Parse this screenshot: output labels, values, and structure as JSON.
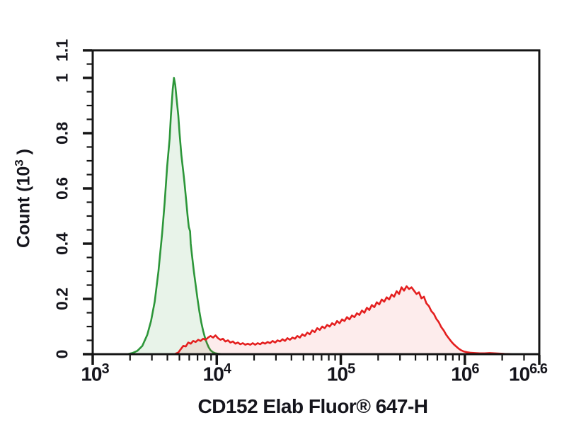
{
  "chart_data": {
    "type": "area",
    "subtype": "flow-cytometry-overlay-histogram",
    "title": "",
    "xlabel": "CD152 Elab Fluor® 647-H",
    "ylabel_prefix": "Count (10",
    "ylabel_sup": "3",
    "ylabel_suffix": " )",
    "grid": false,
    "legend": "none",
    "x_axis": {
      "scale": "log10",
      "min_log": 3,
      "max_log": 6.6,
      "major_ticks": [
        {
          "base": "10",
          "exp": "3",
          "log": 3,
          "dx": 3
        },
        {
          "base": "10",
          "exp": "4",
          "log": 4,
          "dx": 0
        },
        {
          "base": "10",
          "exp": "5",
          "log": 5,
          "dx": 0
        },
        {
          "base": "10",
          "exp": "6",
          "log": 6,
          "dx": 0
        },
        {
          "base": "10",
          "exp": "6.6",
          "log": 6.6,
          "dx": -16
        }
      ],
      "minor_ticks": "log positions 2-9 within each decade"
    },
    "y_axis": {
      "min": 0,
      "max": 1.1,
      "major_ticks": [
        {
          "label": "0",
          "value": 0
        },
        {
          "label": "0.2",
          "value": 0.2
        },
        {
          "label": "0.4",
          "value": 0.4
        },
        {
          "label": "0.6",
          "value": 0.6
        },
        {
          "label": "0.8",
          "value": 0.8
        },
        {
          "label": "1",
          "value": 1
        },
        {
          "label": "1.1",
          "value": 1.1
        }
      ],
      "minor_step": 0.05
    },
    "axis_color": "#151515",
    "series": [
      {
        "name": "green",
        "color": "#2c9639",
        "fill": "rgba(44,150,57,0.11)",
        "peak_log_x": 3.65,
        "peak_y": 1.0,
        "points": [
          [
            3.28,
            0
          ],
          [
            3.32,
            0.004
          ],
          [
            3.36,
            0.012
          ],
          [
            3.4,
            0.03
          ],
          [
            3.44,
            0.07
          ],
          [
            3.47,
            0.12
          ],
          [
            3.5,
            0.19
          ],
          [
            3.53,
            0.3
          ],
          [
            3.56,
            0.44
          ],
          [
            3.58,
            0.55
          ],
          [
            3.6,
            0.68
          ],
          [
            3.62,
            0.78
          ],
          [
            3.63,
            0.86
          ],
          [
            3.645,
            0.96
          ],
          [
            3.655,
            1.0
          ],
          [
            3.665,
            0.975
          ],
          [
            3.675,
            0.93
          ],
          [
            3.69,
            0.865
          ],
          [
            3.7,
            0.8
          ],
          [
            3.715,
            0.72
          ],
          [
            3.73,
            0.66
          ],
          [
            3.74,
            0.62
          ],
          [
            3.755,
            0.55
          ],
          [
            3.765,
            0.5
          ],
          [
            3.775,
            0.46
          ],
          [
            3.785,
            0.445
          ],
          [
            3.79,
            0.4
          ],
          [
            3.8,
            0.36
          ],
          [
            3.815,
            0.3
          ],
          [
            3.83,
            0.25
          ],
          [
            3.845,
            0.2
          ],
          [
            3.86,
            0.155
          ],
          [
            3.875,
            0.115
          ],
          [
            3.89,
            0.085
          ],
          [
            3.905,
            0.06
          ],
          [
            3.92,
            0.04
          ],
          [
            3.935,
            0.025
          ],
          [
            3.95,
            0.014
          ],
          [
            3.97,
            0.007
          ],
          [
            3.99,
            0.003
          ],
          [
            4.02,
            0.001
          ],
          [
            4.05,
            0
          ]
        ]
      },
      {
        "name": "red",
        "color": "#e41f1f",
        "fill": "rgba(228,31,31,0.085)",
        "peak_log_x": 5.48,
        "peak_y": 0.25,
        "points": [
          [
            3.66,
            0
          ],
          [
            3.69,
            0.006
          ],
          [
            3.71,
            0.018
          ],
          [
            3.73,
            0.03
          ],
          [
            3.75,
            0.028
          ],
          [
            3.77,
            0.042
          ],
          [
            3.79,
            0.038
          ],
          [
            3.81,
            0.048
          ],
          [
            3.83,
            0.044
          ],
          [
            3.85,
            0.052
          ],
          [
            3.87,
            0.048
          ],
          [
            3.89,
            0.056
          ],
          [
            3.91,
            0.052
          ],
          [
            3.93,
            0.06
          ],
          [
            3.95,
            0.066
          ],
          [
            3.97,
            0.06
          ],
          [
            3.99,
            0.068
          ],
          [
            4.01,
            0.058
          ],
          [
            4.03,
            0.052
          ],
          [
            4.05,
            0.056
          ],
          [
            4.07,
            0.046
          ],
          [
            4.09,
            0.05
          ],
          [
            4.11,
            0.042
          ],
          [
            4.13,
            0.046
          ],
          [
            4.15,
            0.038
          ],
          [
            4.17,
            0.042
          ],
          [
            4.19,
            0.036
          ],
          [
            4.21,
            0.04
          ],
          [
            4.23,
            0.034
          ],
          [
            4.25,
            0.038
          ],
          [
            4.27,
            0.034
          ],
          [
            4.29,
            0.04
          ],
          [
            4.31,
            0.034
          ],
          [
            4.33,
            0.04
          ],
          [
            4.35,
            0.036
          ],
          [
            4.37,
            0.042
          ],
          [
            4.39,
            0.038
          ],
          [
            4.41,
            0.044
          ],
          [
            4.43,
            0.04
          ],
          [
            4.45,
            0.048
          ],
          [
            4.47,
            0.042
          ],
          [
            4.49,
            0.05
          ],
          [
            4.51,
            0.046
          ],
          [
            4.53,
            0.054
          ],
          [
            4.55,
            0.048
          ],
          [
            4.57,
            0.058
          ],
          [
            4.59,
            0.052
          ],
          [
            4.61,
            0.06
          ],
          [
            4.63,
            0.056
          ],
          [
            4.65,
            0.066
          ],
          [
            4.67,
            0.06
          ],
          [
            4.69,
            0.072
          ],
          [
            4.71,
            0.066
          ],
          [
            4.73,
            0.078
          ],
          [
            4.75,
            0.072
          ],
          [
            4.77,
            0.086
          ],
          [
            4.79,
            0.08
          ],
          [
            4.81,
            0.094
          ],
          [
            4.83,
            0.088
          ],
          [
            4.85,
            0.1
          ],
          [
            4.87,
            0.094
          ],
          [
            4.89,
            0.106
          ],
          [
            4.91,
            0.1
          ],
          [
            4.93,
            0.112
          ],
          [
            4.95,
            0.106
          ],
          [
            4.97,
            0.12
          ],
          [
            4.99,
            0.112
          ],
          [
            5.01,
            0.126
          ],
          [
            5.03,
            0.12
          ],
          [
            5.05,
            0.134
          ],
          [
            5.07,
            0.126
          ],
          [
            5.09,
            0.14
          ],
          [
            5.11,
            0.134
          ],
          [
            5.13,
            0.148
          ],
          [
            5.15,
            0.142
          ],
          [
            5.17,
            0.158
          ],
          [
            5.19,
            0.15
          ],
          [
            5.21,
            0.168
          ],
          [
            5.23,
            0.16
          ],
          [
            5.25,
            0.178
          ],
          [
            5.27,
            0.17
          ],
          [
            5.29,
            0.188
          ],
          [
            5.31,
            0.18
          ],
          [
            5.33,
            0.198
          ],
          [
            5.35,
            0.19
          ],
          [
            5.37,
            0.206
          ],
          [
            5.39,
            0.198
          ],
          [
            5.41,
            0.216
          ],
          [
            5.43,
            0.208
          ],
          [
            5.45,
            0.228
          ],
          [
            5.47,
            0.218
          ],
          [
            5.49,
            0.242
          ],
          [
            5.51,
            0.23
          ],
          [
            5.53,
            0.246
          ],
          [
            5.55,
            0.236
          ],
          [
            5.57,
            0.242
          ],
          [
            5.59,
            0.23
          ],
          [
            5.61,
            0.218
          ],
          [
            5.63,
            0.224
          ],
          [
            5.65,
            0.202
          ],
          [
            5.67,
            0.208
          ],
          [
            5.69,
            0.184
          ],
          [
            5.71,
            0.174
          ],
          [
            5.73,
            0.156
          ],
          [
            5.75,
            0.146
          ],
          [
            5.77,
            0.128
          ],
          [
            5.79,
            0.116
          ],
          [
            5.81,
            0.098
          ],
          [
            5.83,
            0.086
          ],
          [
            5.85,
            0.07
          ],
          [
            5.87,
            0.058
          ],
          [
            5.89,
            0.046
          ],
          [
            5.91,
            0.036
          ],
          [
            5.93,
            0.028
          ],
          [
            5.95,
            0.02
          ],
          [
            5.97,
            0.014
          ],
          [
            5.99,
            0.01
          ],
          [
            6.02,
            0.007
          ],
          [
            6.05,
            0.005
          ],
          [
            6.08,
            0.004
          ],
          [
            6.12,
            0.003
          ],
          [
            6.16,
            0.003
          ],
          [
            6.2,
            0.004
          ],
          [
            6.24,
            0.003
          ],
          [
            6.28,
            0.002
          ],
          [
            6.32,
            0.001
          ],
          [
            6.38,
            0.0005
          ],
          [
            6.45,
            0
          ]
        ]
      }
    ]
  }
}
